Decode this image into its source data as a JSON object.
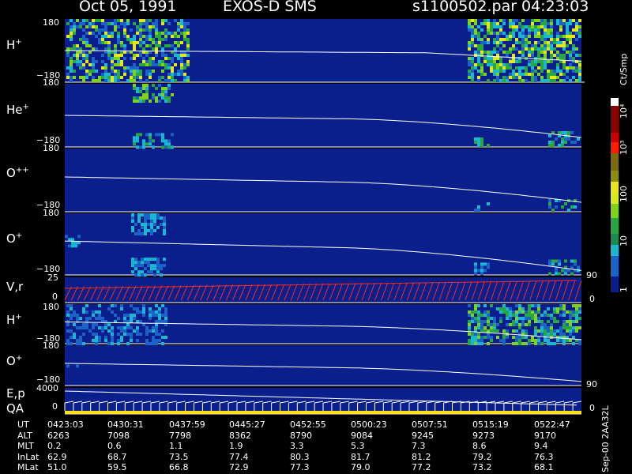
{
  "header": {
    "date": "Oct 05, 1991",
    "instrument": "EXOS-D SMS",
    "file": "s1100502.par",
    "time": "04:23:03"
  },
  "colors": {
    "background": "#000000",
    "panel": "#0a1f8c",
    "trace": "#ffffff",
    "velocity_trace": "#ff2a1a",
    "qa_bar": "#ffe01a"
  },
  "panels": [
    {
      "label": "H",
      "charge": "+",
      "top_tick": "180",
      "bottom_tick": "−180"
    },
    {
      "label": "He",
      "charge": "+",
      "top_tick": "180",
      "bottom_tick": "−180"
    },
    {
      "label": "O",
      "charge": "++",
      "top_tick": "180",
      "bottom_tick": "−180"
    },
    {
      "label": "O",
      "charge": "+",
      "top_tick": "180",
      "bottom_tick": "−180"
    },
    {
      "label": "V,r",
      "charge": "",
      "top_tick": "25",
      "bottom_tick": "0",
      "right_top": "90",
      "right_bottom": "0"
    },
    {
      "label": "H",
      "charge": "+",
      "top_tick": "180",
      "bottom_tick": "−180"
    },
    {
      "label": "O",
      "charge": "+",
      "top_tick": "180",
      "bottom_tick": "−180"
    },
    {
      "label": "E,p",
      "label2": "QA",
      "charge": "",
      "top_tick": "4000",
      "bottom_tick": "0",
      "right_top": "90",
      "right_bottom": "0"
    }
  ],
  "colorbar": {
    "unit": "Ct/Smp",
    "ticks": [
      "10⁴",
      "10³",
      "100",
      "10",
      "1"
    ]
  },
  "side_note": "Sep-00  2AA32L",
  "chart_data": {
    "type": "heatmap",
    "title": "Oct 05, 1991   EXOS-D SMS",
    "colorscale": [
      "#0a1f8c",
      "#1b63c9",
      "#19b8d0",
      "#2aa640",
      "#7fd21c",
      "#e8e51a",
      "#ff8c00",
      "#ff1a00",
      "#8b0000",
      "#ffffff"
    ],
    "colorbar_range": [
      1,
      10000
    ],
    "colorbar_scale": "log",
    "ylim_pitch": [
      -180,
      180
    ],
    "ylim_velocity": [
      0,
      25
    ],
    "ylim_energy": [
      0,
      4000
    ],
    "x_ticks": [
      "0423:03",
      "0430:31",
      "0437:59",
      "0445:27",
      "0452:55",
      "0500:23",
      "0507:51",
      "0515:19",
      "0522:47"
    ],
    "rows": [
      {
        "name": "UT",
        "values": [
          "0423:03",
          "0430:31",
          "0437:59",
          "0445:27",
          "0452:55",
          "0500:23",
          "0507:51",
          "0515:19",
          "0522:47"
        ]
      },
      {
        "name": "ALT",
        "values": [
          "6263",
          "7098",
          "7798",
          "8362",
          "8790",
          "9084",
          "9245",
          "9273",
          "9170"
        ]
      },
      {
        "name": "MLT",
        "values": [
          "0.2",
          "0.6",
          "1.1",
          "1.9",
          "3.3",
          "5.3",
          "7.3",
          "8.6",
          "9.4"
        ]
      },
      {
        "name": "InLat",
        "values": [
          "62.9",
          "68.7",
          "73.5",
          "77.4",
          "80.3",
          "81.7",
          "81.2",
          "79.2",
          "76.3"
        ]
      },
      {
        "name": "MLat",
        "values": [
          "51.0",
          "59.5",
          "66.8",
          "72.9",
          "77.3",
          "79.0",
          "77.2",
          "73.2",
          "68.1"
        ]
      }
    ]
  }
}
